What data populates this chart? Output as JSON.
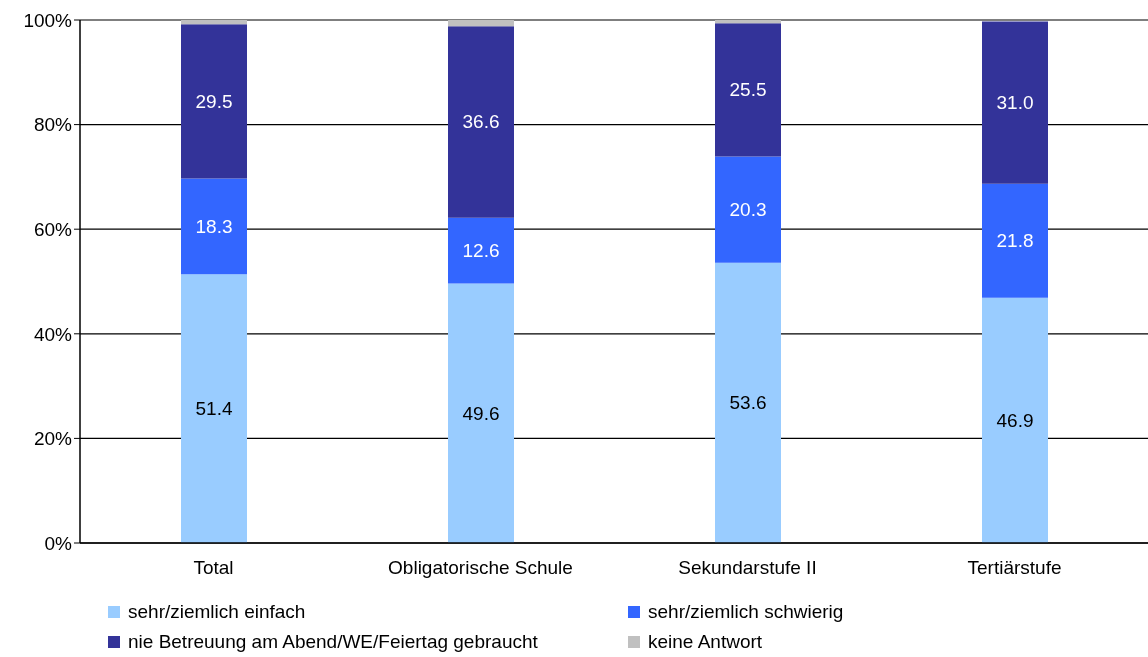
{
  "chart_data": {
    "type": "bar",
    "stacked": true,
    "categories": [
      "Total",
      "Obligatorische Schule",
      "Sekundarstufe II",
      "Tertiärstufe"
    ],
    "series": [
      {
        "name": "sehr/ziemlich einfach",
        "color": "#99ccff",
        "values": [
          51.4,
          49.6,
          53.6,
          46.9
        ],
        "value_labels": [
          "51.4",
          "49.6",
          "53.6",
          "46.9"
        ]
      },
      {
        "name": "sehr/ziemlich schwierig",
        "color": "#3366ff",
        "values": [
          18.3,
          12.6,
          20.3,
          21.8
        ],
        "value_labels": [
          "18.3",
          "12.6",
          "20.3",
          "21.8"
        ]
      },
      {
        "name": "nie Betreuung am Abend/WE/Feiertag gebraucht",
        "color": "#333399",
        "values": [
          29.5,
          36.6,
          25.5,
          31.0
        ],
        "value_labels": [
          "29.5",
          "36.6",
          "25.5",
          "31.0"
        ]
      },
      {
        "name": "keine Antwort",
        "color": "#c0c0c0",
        "values": [
          0.8,
          1.2,
          0.6,
          null
        ]
      }
    ],
    "ylim": [
      0,
      100
    ],
    "yticks": [
      {
        "value": 0,
        "label": "0%"
      },
      {
        "value": 20,
        "label": "20%"
      },
      {
        "value": 40,
        "label": "40%"
      },
      {
        "value": 60,
        "label": "60%"
      },
      {
        "value": 80,
        "label": "80%"
      },
      {
        "value": 100,
        "label": "100%"
      }
    ],
    "grid": "y",
    "legend": "bottom"
  }
}
